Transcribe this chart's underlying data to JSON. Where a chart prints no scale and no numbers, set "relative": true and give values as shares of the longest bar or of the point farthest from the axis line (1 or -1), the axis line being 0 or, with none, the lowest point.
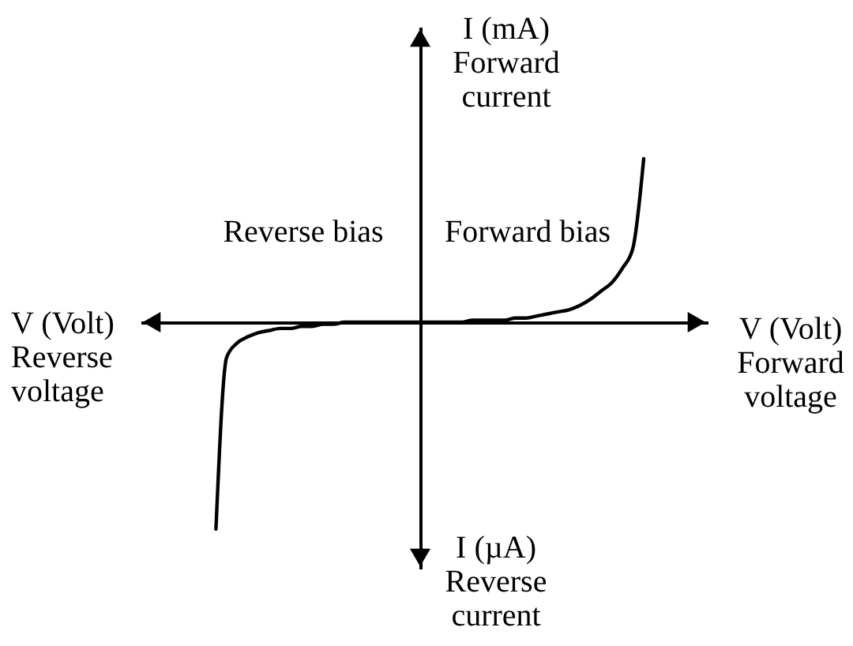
{
  "chart_data": {
    "type": "line",
    "relative": true,
    "xlabel": "V (Volt)\nForward\nvoltage",
    "ylabel": "I (mA)\nForward\ncurrent",
    "annotations": [
      "Reverse bias",
      "Forward bias",
      "V (Volt)\nReverse\nvoltage",
      "I (µA)\nReverse\ncurrent"
    ],
    "categories": [
      null,
      null,
      null,
      null,
      null,
      null,
      null,
      null,
      null,
      null,
      null,
      null,
      null,
      null,
      null,
      null,
      null,
      null,
      null,
      null,
      null,
      null,
      null,
      null,
      null,
      null,
      null,
      null,
      null,
      null,
      null,
      null,
      null,
      null,
      null,
      null,
      null,
      null,
      null,
      null,
      null
    ],
    "series": [
      {
        "color": "#000000",
        "values": [
          -1,
          -0.17,
          -0.1,
          -0.07,
          -0.05,
          -0.04,
          -0.03,
          -0.03,
          -0.02,
          -0.02,
          -0.01,
          -0.01,
          0,
          0,
          0,
          0,
          0,
          0,
          0,
          0,
          0,
          0,
          0,
          0,
          0.01,
          0.01,
          0.01,
          0.01,
          0.02,
          0.02,
          0.03,
          0.04,
          0.05,
          0.06,
          0.08,
          0.11,
          0.15,
          0.19,
          0.26,
          0.36,
          0.79
        ]
      }
    ]
  }
}
